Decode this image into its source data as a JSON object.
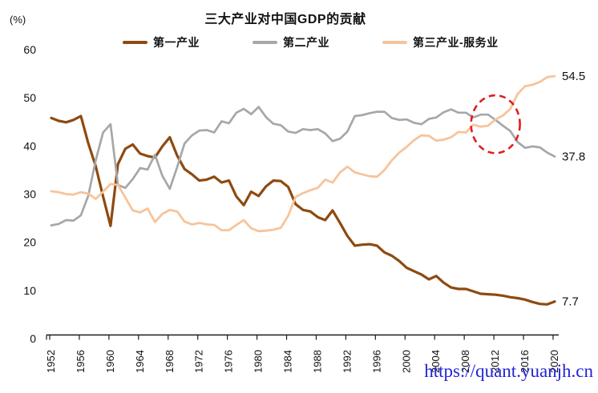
{
  "page": {
    "title": "三大产业对中国GDP的贡献",
    "y_axis_unit": "(%)",
    "watermark": "https://quant.yuanjh.cn"
  },
  "colors": {
    "primary": "#8E4A10",
    "secondary": "#A7A7A7",
    "tertiary": "#F6C49C",
    "annotation": "#E01E1E",
    "watermark": "#2323D8",
    "axis": "#1a1a1a",
    "text": "#111111"
  },
  "legend": {
    "items": [
      {
        "label": "第一产业",
        "color": "primary"
      },
      {
        "label": "第二产业",
        "color": "secondary"
      },
      {
        "label": "第三产业-服务业",
        "color": "tertiary"
      }
    ]
  },
  "chart_data": {
    "type": "line",
    "title": "三大产业对中国GDP的贡献",
    "ylabel": "(%)",
    "xlabel": "",
    "ylim": [
      0,
      60
    ],
    "grid": false,
    "legend_position": "top",
    "y_ticks": [
      0,
      10,
      20,
      30,
      40,
      50,
      60
    ],
    "x_tick_years": [
      1952,
      1956,
      1960,
      1964,
      1968,
      1972,
      1976,
      1980,
      1984,
      1988,
      1992,
      1996,
      2000,
      2004,
      2008,
      2012,
      2016,
      2020
    ],
    "years": [
      1952,
      1953,
      1954,
      1955,
      1956,
      1957,
      1958,
      1959,
      1960,
      1961,
      1962,
      1963,
      1964,
      1965,
      1966,
      1967,
      1968,
      1969,
      1970,
      1971,
      1972,
      1973,
      1974,
      1975,
      1976,
      1977,
      1978,
      1979,
      1980,
      1981,
      1982,
      1983,
      1984,
      1985,
      1986,
      1987,
      1988,
      1989,
      1990,
      1991,
      1992,
      1993,
      1994,
      1995,
      1996,
      1997,
      1998,
      1999,
      2000,
      2001,
      2002,
      2003,
      2004,
      2005,
      2006,
      2007,
      2008,
      2009,
      2010,
      2011,
      2012,
      2013,
      2014,
      2015,
      2016,
      2017,
      2018,
      2019,
      2020
    ],
    "series": [
      {
        "name": "第一产业",
        "color": "primary",
        "end_label": "7.7",
        "values": [
          45.8,
          45.2,
          44.9,
          45.4,
          46.2,
          40.5,
          35.8,
          29.5,
          23.4,
          36.2,
          39.4,
          40.3,
          38.4,
          37.9,
          37.6,
          39.9,
          41.8,
          38.0,
          35.2,
          34.1,
          32.8,
          33.0,
          33.6,
          32.4,
          32.8,
          29.5,
          27.7,
          30.5,
          29.6,
          31.6,
          32.8,
          32.7,
          31.5,
          27.9,
          26.7,
          26.4,
          25.2,
          24.6,
          26.6,
          24.0,
          21.3,
          19.3,
          19.5,
          19.6,
          19.3,
          17.9,
          17.2,
          16.1,
          14.7,
          14.0,
          13.3,
          12.3,
          13.0,
          11.6,
          10.6,
          10.3,
          10.3,
          9.8,
          9.3,
          9.2,
          9.1,
          8.9,
          8.6,
          8.4,
          8.1,
          7.6,
          7.2,
          7.1,
          7.7
        ]
      },
      {
        "name": "第二产业",
        "color": "secondary",
        "end_label": "37.8",
        "values": [
          23.5,
          23.8,
          24.6,
          24.5,
          25.6,
          29.7,
          37.0,
          42.8,
          44.5,
          31.9,
          31.3,
          33.1,
          35.4,
          35.1,
          38.2,
          33.8,
          31.1,
          35.6,
          40.5,
          42.2,
          43.2,
          43.3,
          42.8,
          45.1,
          44.7,
          46.9,
          47.7,
          46.6,
          48.1,
          46.0,
          44.6,
          44.3,
          43.0,
          42.7,
          43.5,
          43.3,
          43.5,
          42.6,
          41.0,
          41.5,
          43.0,
          46.2,
          46.4,
          46.8,
          47.1,
          47.1,
          45.8,
          45.4,
          45.5,
          44.8,
          44.5,
          45.6,
          45.9,
          47.0,
          47.6,
          46.9,
          46.9,
          45.9,
          46.5,
          46.5,
          45.4,
          44.2,
          43.1,
          40.8,
          39.6,
          39.9,
          39.7,
          38.6,
          37.8
        ]
      },
      {
        "name": "第三产业-服务业",
        "color": "tertiary",
        "end_label": "54.5",
        "values": [
          30.6,
          30.4,
          30.0,
          29.9,
          30.4,
          30.1,
          29.0,
          30.5,
          32.1,
          31.9,
          29.3,
          26.6,
          26.2,
          27.0,
          24.2,
          25.9,
          26.7,
          26.4,
          24.3,
          23.7,
          24.0,
          23.7,
          23.6,
          22.5,
          22.5,
          23.6,
          24.6,
          22.9,
          22.3,
          22.4,
          22.6,
          23.0,
          25.5,
          29.4,
          30.2,
          30.8,
          31.3,
          33.0,
          32.4,
          34.5,
          35.7,
          34.5,
          34.1,
          33.7,
          33.6,
          35.0,
          37.0,
          38.6,
          39.8,
          41.2,
          42.2,
          42.1,
          41.1,
          41.3,
          41.8,
          42.9,
          42.8,
          44.4,
          44.0,
          44.2,
          45.5,
          46.3,
          47.7,
          50.8,
          52.4,
          52.7,
          53.3,
          54.3,
          54.5
        ]
      }
    ],
    "annotation_circle": {
      "center_year": 2012,
      "center_value": 44.5,
      "radius_years": 3.3,
      "radius_value": 6.0
    }
  }
}
